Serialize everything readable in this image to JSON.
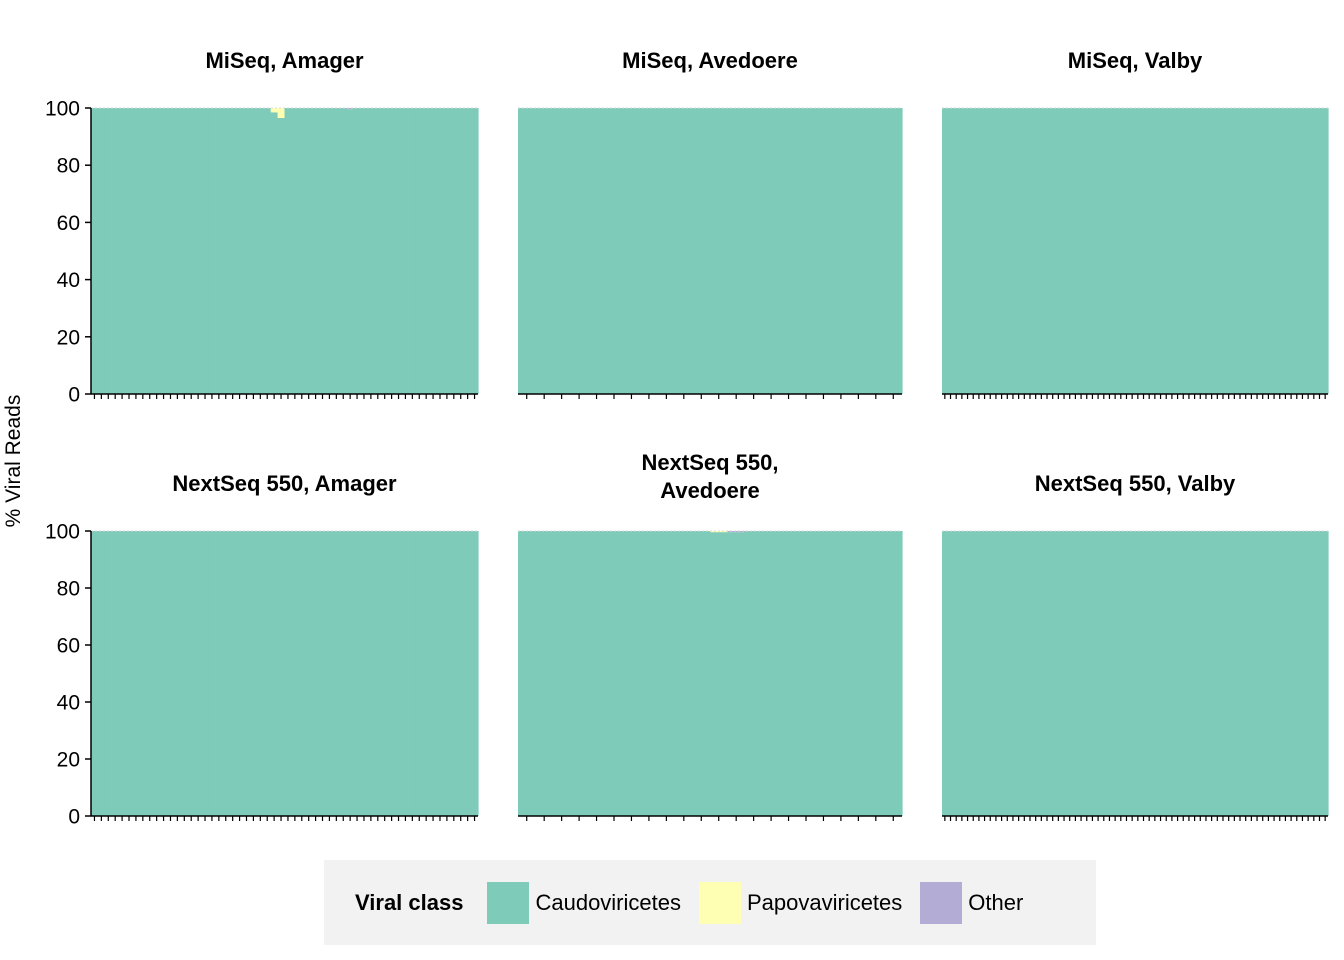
{
  "chart_data": {
    "type": "bar",
    "stacked": true,
    "ylabel": "% Viral Reads",
    "ylim": [
      0,
      100
    ],
    "yticks": [
      "0",
      "20",
      "40",
      "60",
      "80",
      "100"
    ],
    "legend": {
      "title": "Viral class",
      "position": "bottom",
      "entries": [
        {
          "name": "Caudoviricetes",
          "color": "#7fcbba"
        },
        {
          "name": "Papovaviricetes",
          "color": "#ffffb3"
        },
        {
          "name": "Other",
          "color": "#b3acd4"
        }
      ]
    },
    "panels": [
      {
        "title": "MiSeq, Amager",
        "n_samples": 56,
        "papovaviricetes": [
          0,
          0,
          0,
          0,
          0,
          0,
          0,
          0,
          0,
          0,
          0,
          0,
          0,
          0,
          0,
          0,
          0,
          0,
          0,
          0,
          0,
          0,
          0,
          0,
          0,
          0,
          1.5,
          3.5,
          0,
          0,
          0,
          0,
          0,
          0,
          0,
          0,
          0,
          0,
          0,
          0,
          0,
          0,
          0,
          0,
          0,
          0,
          0,
          0,
          0,
          0,
          0,
          0,
          0,
          0,
          0,
          0
        ],
        "other": [
          0,
          0,
          0,
          0,
          0,
          0,
          0,
          0,
          0,
          0,
          0,
          0,
          0,
          0,
          0,
          0,
          0,
          0,
          0,
          0,
          0,
          0,
          0,
          0,
          0,
          0,
          0,
          0,
          0,
          0,
          0,
          0,
          0,
          0,
          0,
          0,
          0,
          0.4,
          0,
          0,
          0,
          0,
          0,
          0,
          0,
          0,
          0,
          0,
          0,
          0,
          0,
          0,
          0,
          0,
          0,
          0
        ]
      },
      {
        "title": "MiSeq, Avedoere",
        "n_samples": 22,
        "papovaviricetes": [
          0,
          0,
          0,
          0,
          0,
          0,
          0,
          0,
          0,
          0,
          0,
          0,
          0,
          0,
          0,
          0,
          0,
          0,
          0,
          0,
          0,
          0
        ],
        "other": [
          0,
          0,
          0,
          0,
          0,
          0,
          0,
          0,
          0,
          0,
          0,
          0,
          0,
          0,
          0,
          0,
          0,
          0,
          0,
          0,
          0,
          0
        ]
      },
      {
        "title": "MiSeq, Valby",
        "n_samples": 68,
        "papovaviricetes": [],
        "other": []
      },
      {
        "title": "NextSeq 550, Amager",
        "n_samples": 56,
        "papovaviricetes": [],
        "other": []
      },
      {
        "title": "NextSeq 550, Avedoere",
        "n_samples": 22,
        "papovaviricetes": [
          0,
          0,
          0,
          0,
          0,
          0,
          0,
          0,
          0,
          0,
          0,
          0.4,
          0,
          0,
          0,
          0,
          0,
          0,
          0,
          0,
          0,
          0
        ],
        "other": [
          0,
          0,
          0,
          0,
          0,
          0,
          0,
          0,
          0,
          0,
          0,
          0,
          0.4,
          0,
          0,
          0,
          0,
          0,
          0,
          0,
          0,
          0
        ]
      },
      {
        "title": "NextSeq 550, Valby",
        "n_samples": 68,
        "papovaviricetes": [],
        "other": []
      }
    ]
  }
}
